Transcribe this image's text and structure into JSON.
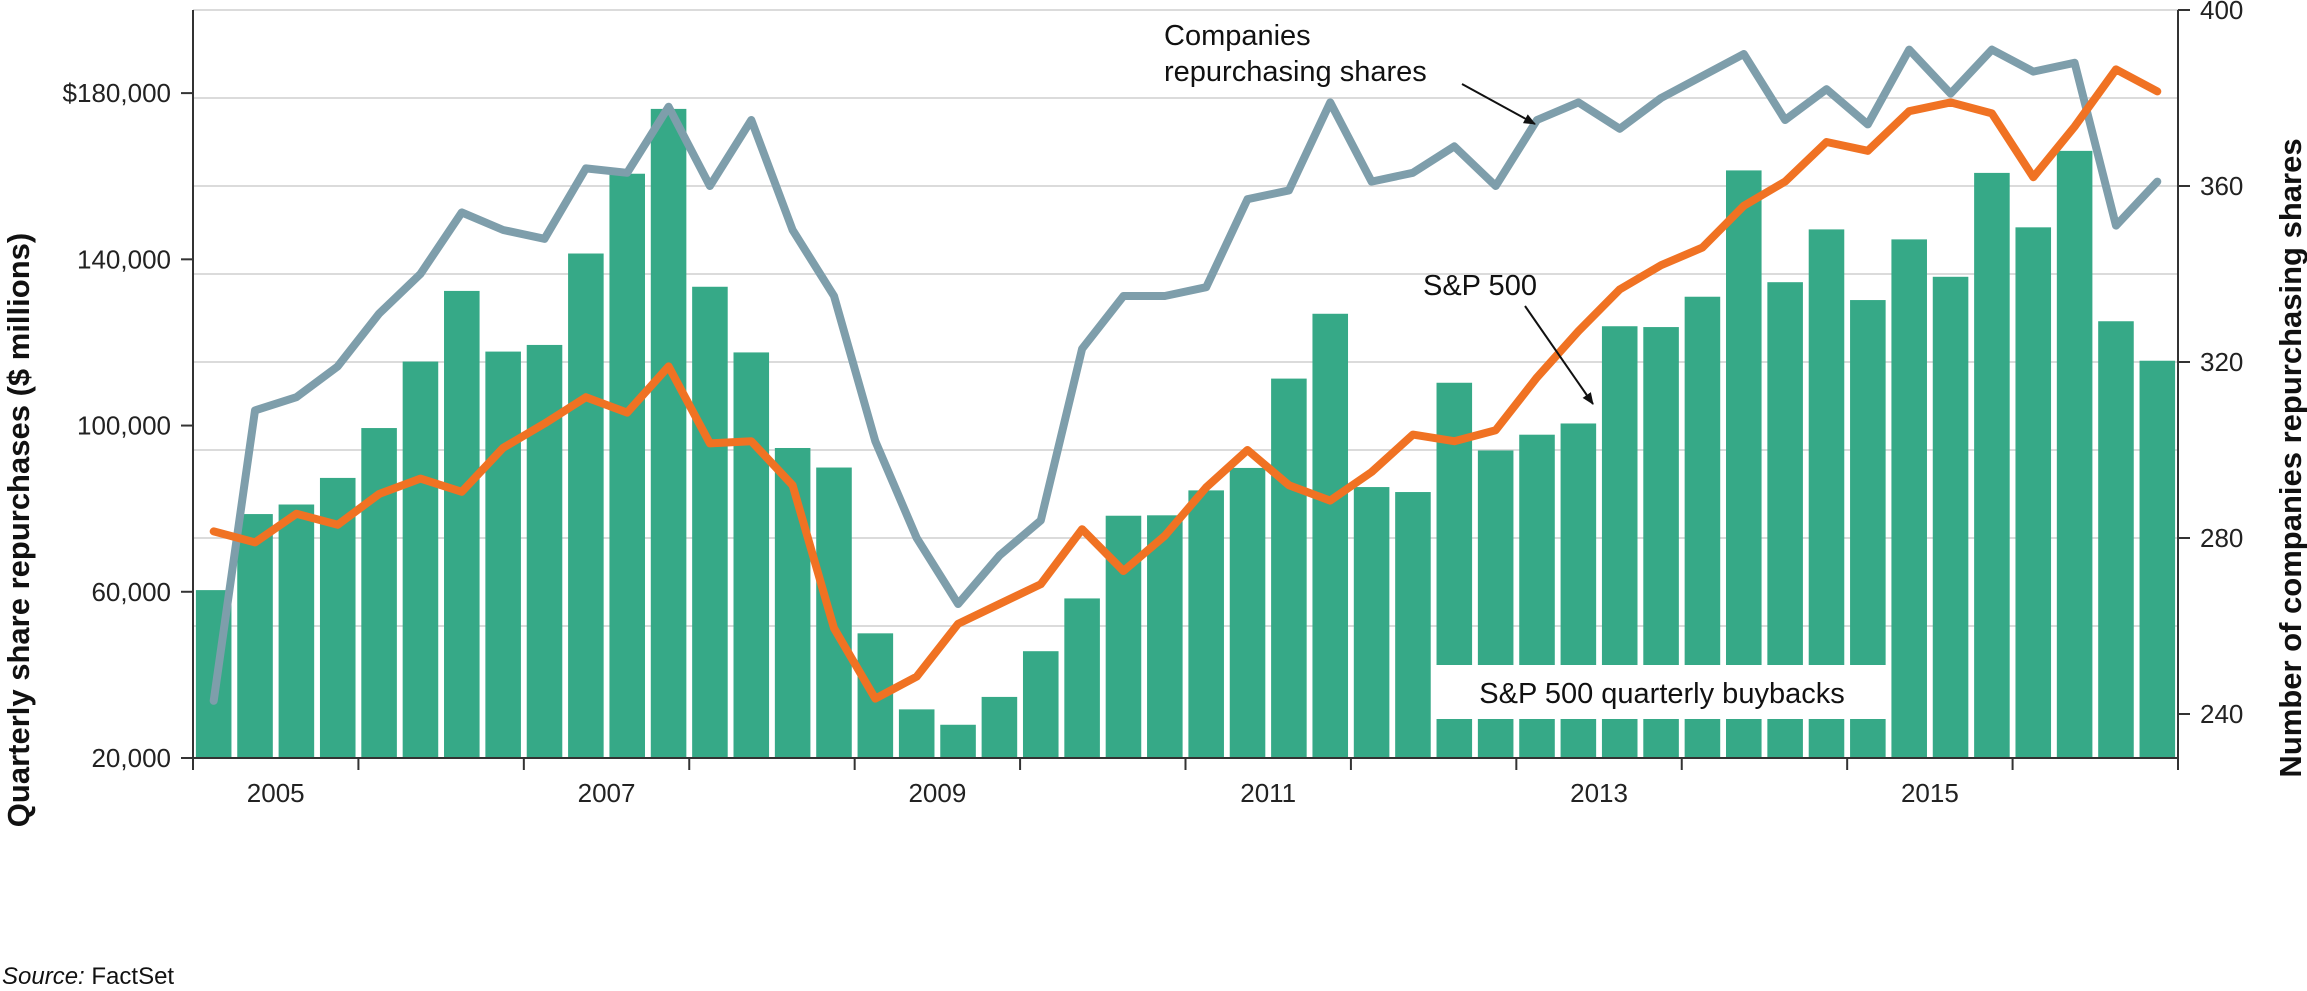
{
  "source": {
    "label": "Source:",
    "value": "FactSet"
  },
  "colors": {
    "bars": "#36a987",
    "sp500_line": "#f07223",
    "companies_line": "#7e9eab",
    "grid": "#cfcfcf",
    "axis": "#333333"
  },
  "chart_data": {
    "type": "bar",
    "title": "",
    "ylabel": "Quarterly share repurchases ($ millions)",
    "y2label": "Number of companies repurchasing shares",
    "ylim": [
      20000,
      200000
    ],
    "y2lim": [
      230,
      400
    ],
    "yticks": [
      20000,
      60000,
      100000,
      140000,
      180000
    ],
    "ytick_labels": [
      "20,000",
      "60,000",
      "100,000",
      "140,000",
      "$180,000"
    ],
    "y2ticks": [
      240,
      280,
      320,
      360,
      400
    ],
    "y2tick_labels": [
      "240",
      "280",
      "320",
      "360",
      "400"
    ],
    "xtick_labels": [
      {
        "label": "2005",
        "q": 2
      },
      {
        "label": "2007",
        "q": 10
      },
      {
        "label": "2009",
        "q": 18
      },
      {
        "label": "2011",
        "q": 26
      },
      {
        "label": "2013",
        "q": 34
      },
      {
        "label": "2015",
        "q": 42
      }
    ],
    "grid": true,
    "quarters": 48,
    "series": [
      {
        "key": "buybacks",
        "type": "bar",
        "axis": "left",
        "values": [
          60400,
          78700,
          81000,
          87400,
          99400,
          115400,
          132400,
          117800,
          119400,
          141400,
          160600,
          176200,
          133400,
          117600,
          94600,
          89900,
          50000,
          31700,
          28000,
          34700,
          45700,
          58400,
          78300,
          78400,
          84400,
          89800,
          111300,
          126900,
          85200,
          84000,
          110300,
          94000,
          97800,
          100500,
          123900,
          123700,
          131000,
          161400,
          134500,
          147200,
          130200,
          144800,
          135800,
          160800,
          147700,
          166100,
          125100,
          115600
        ]
      },
      {
        "key": "companies",
        "type": "line",
        "axis": "right",
        "values": [
          243,
          309,
          312,
          319,
          331,
          340,
          354,
          350,
          348,
          364,
          363,
          378,
          360,
          375,
          350,
          335,
          302,
          280,
          265,
          276,
          284,
          323,
          335,
          335,
          337,
          357,
          359,
          379,
          361,
          363,
          369,
          360,
          375,
          379,
          373,
          380,
          385,
          390,
          375,
          382,
          374,
          391,
          381,
          391,
          386,
          388,
          351,
          361
        ]
      },
      {
        "key": "sp500",
        "type": "line",
        "axis": "ghost",
        "values": [
          281.5,
          279,
          285.5,
          283,
          290,
          293.5,
          290.5,
          300.5,
          306,
          312,
          308.5,
          319,
          301.5,
          302,
          292,
          259.5,
          243.5,
          248.5,
          260.5,
          265,
          269.5,
          282,
          272.5,
          280.5,
          291.5,
          300,
          292,
          288.5,
          295,
          303.5,
          302,
          304.5,
          316.5,
          327,
          336.5,
          342,
          346,
          355.5,
          361,
          370,
          368,
          377,
          379,
          376.5,
          362,
          373.5,
          386.5,
          381.5
        ]
      }
    ],
    "annotations": {
      "companies": "Companies\nrepurchasing shares",
      "sp500": "S&P 500",
      "buybacks": "S&P 500 quarterly buybacks"
    }
  }
}
